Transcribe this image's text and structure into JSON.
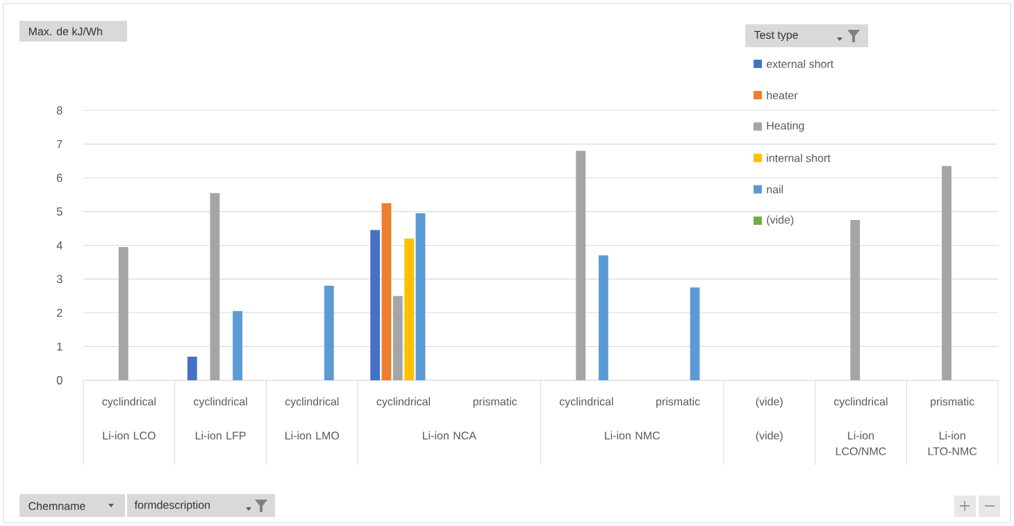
{
  "chart_data": {
    "type": "bar",
    "legend_title": "Test type",
    "categories": [
      "cyclindrical",
      "cyclindrical",
      "cyclindrical",
      "cyclindrical",
      "prismatic",
      "cyclindrical",
      "prismatic",
      "(vide)",
      "cyclindrical",
      "prismatic"
    ],
    "series": [
      {
        "name": "external short",
        "color": "#4472c4",
        "values": [
          null,
          0.7,
          null,
          4.45,
          null,
          null,
          null,
          null,
          null,
          null
        ]
      },
      {
        "name": "heater",
        "color": "#ed7d31",
        "values": [
          null,
          null,
          null,
          5.25,
          null,
          null,
          null,
          null,
          null,
          null
        ]
      },
      {
        "name": "Heating",
        "color": "#a5a5a5",
        "values": [
          3.95,
          5.55,
          null,
          2.5,
          null,
          6.8,
          null,
          null,
          4.75,
          6.35
        ]
      },
      {
        "name": "internal short",
        "color": "#ffc000",
        "values": [
          null,
          null,
          null,
          4.2,
          null,
          null,
          null,
          null,
          null,
          null
        ]
      },
      {
        "name": "nail",
        "color": "#5b9bd5",
        "values": [
          null,
          2.05,
          2.8,
          4.95,
          null,
          3.7,
          2.75,
          null,
          null,
          null
        ]
      },
      {
        "name": "(vide)",
        "color": "#70ad47",
        "values": [
          null,
          null,
          null,
          null,
          null,
          null,
          null,
          null,
          null,
          null
        ]
      }
    ],
    "ylim": [
      0,
      8
    ],
    "yticks": [
      0,
      1,
      2,
      3,
      4,
      5,
      6,
      7,
      8
    ],
    "grid": "y",
    "legend": "top right",
    "annotations": [
      "Li-ion LCO",
      "Li-ion LFP",
      "Li-ion LMO",
      "Li-ion NCA",
      "Li-ion NMC",
      "(vide)",
      "Li-ion LCO/NMC",
      "Li-ion LTO-NMC",
      "Chemname",
      "formdescription",
      "Max. de kJ/Wh"
    ]
  }
}
